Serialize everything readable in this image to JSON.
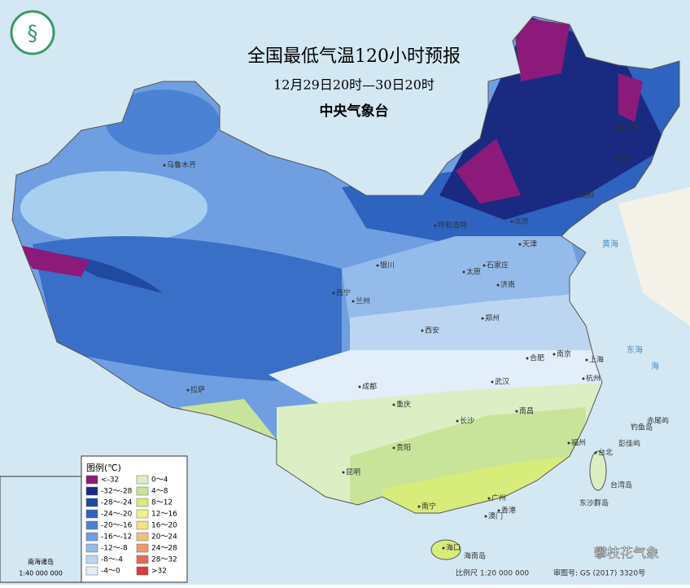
{
  "header": {
    "title": "全国最低气温120小时预报",
    "subtitle": "12月29日20时—30日20时",
    "agency": "中央气象台"
  },
  "legend": {
    "title": "图例(℃)",
    "items": [
      {
        "label": "<-32",
        "color": "#8b1a7a"
      },
      {
        "label": "-32～-28",
        "color": "#1a2a80"
      },
      {
        "label": "-28～-24",
        "color": "#1f4aa0"
      },
      {
        "label": "-24～-20",
        "color": "#2e63c0"
      },
      {
        "label": "-20～-16",
        "color": "#4b82d4"
      },
      {
        "label": "-16～-12",
        "color": "#6f9fe0"
      },
      {
        "label": "-12～-8",
        "color": "#94bbe9"
      },
      {
        "label": "-8～-4",
        "color": "#bcd6f2"
      },
      {
        "label": "-4～0",
        "color": "#e2eef9"
      },
      {
        "label": "0～4",
        "color": "#dcefc4"
      },
      {
        "label": "4～8",
        "color": "#c8e49a"
      },
      {
        "label": "8～12",
        "color": "#d7ec7a"
      },
      {
        "label": "12～16",
        "color": "#f2f08a"
      },
      {
        "label": "16～20",
        "color": "#f5e17f"
      },
      {
        "label": "20～24",
        "color": "#f3c07b"
      },
      {
        "label": "24～28",
        "color": "#ee9a6a"
      },
      {
        "label": "28～32",
        "color": "#e46a5c"
      },
      {
        "label": ">32",
        "color": "#d83b3b"
      }
    ]
  },
  "cities": [
    "哈尔滨",
    "长春",
    "沈阳",
    "乌鲁木齐",
    "呼和浩特",
    "北京",
    "天津",
    "石家庄",
    "太原",
    "银川",
    "济南",
    "西宁",
    "兰州",
    "郑州",
    "西安",
    "合肥",
    "南京",
    "上海",
    "杭州",
    "武汉",
    "拉萨",
    "成都",
    "重庆",
    "长沙",
    "南昌",
    "福州",
    "贵阳",
    "昆明",
    "台北",
    "南宁",
    "广州",
    "香港",
    "澳门",
    "海口"
  ],
  "islands": [
    "台湾岛",
    "钓鱼岛",
    "赤尾屿",
    "彭佳屿",
    "东沙群岛",
    "海南岛"
  ],
  "seas": [
    "黄海",
    "东海",
    "海"
  ],
  "inset": {
    "title": "南海诸岛",
    "scale": "1:40 000 000"
  },
  "footer": {
    "scale": "比例尺 1:20 000 000",
    "approval": "审图号: GS (2017) 3320号",
    "watermark": "攀枝花气象"
  }
}
